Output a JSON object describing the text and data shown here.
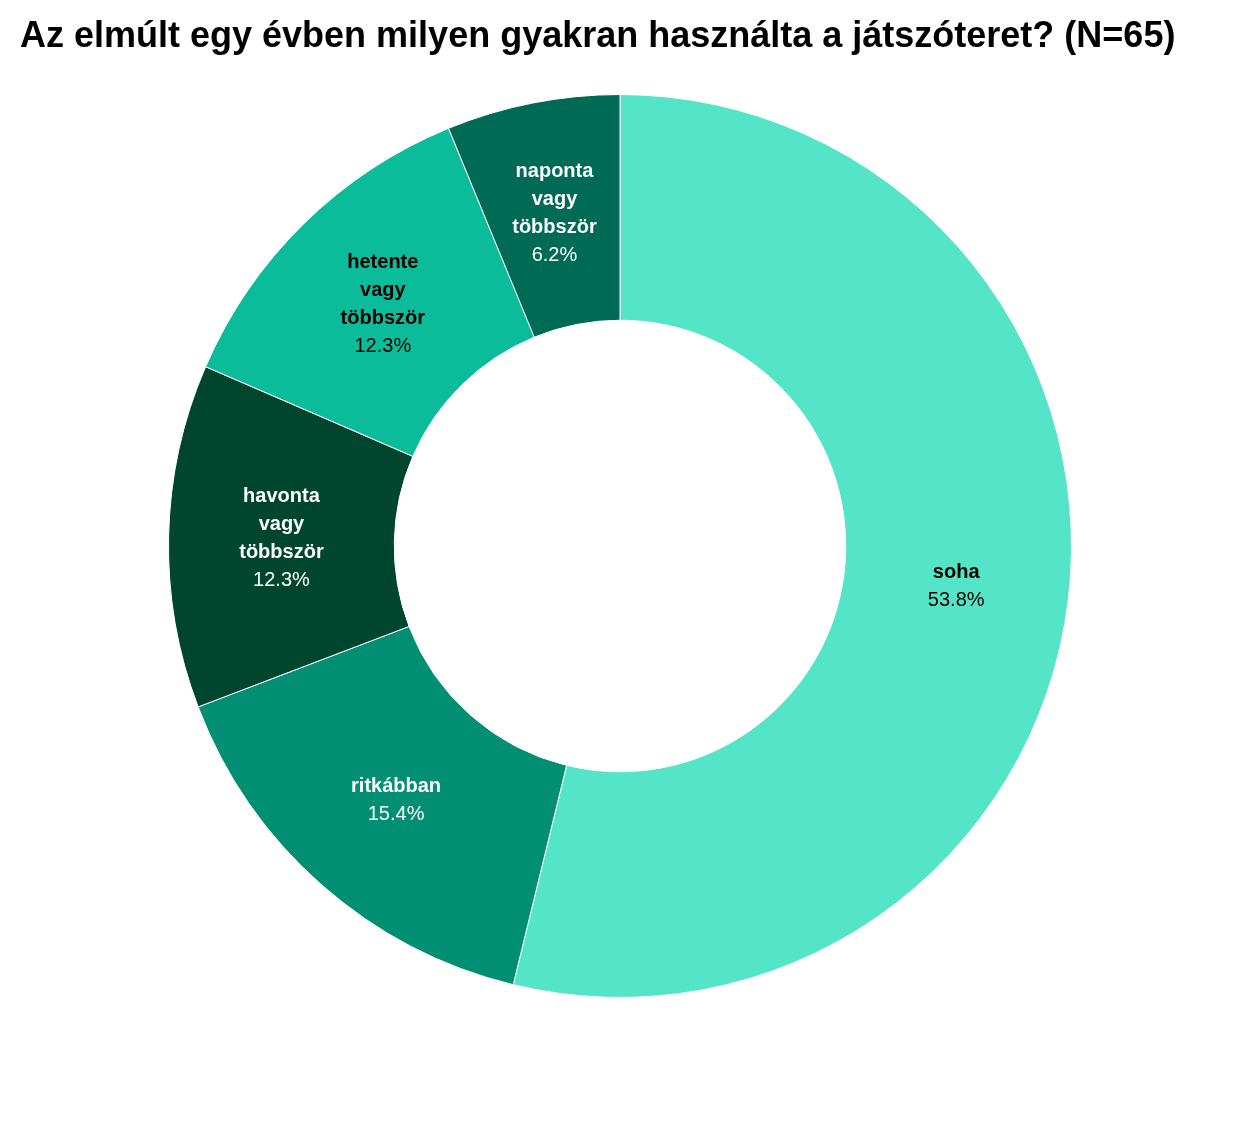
{
  "chart_data": {
    "type": "donut",
    "title": "Az elmúlt egy évben milyen gyakran használta a játszóteret? (N=65)",
    "categories": [
      "soha",
      "ritkábban",
      "havonta vagy többször",
      "hetente vagy többször",
      "naponta vagy többször"
    ],
    "values": [
      53.8,
      15.4,
      12.3,
      12.3,
      6.2
    ],
    "colors": [
      "#54e5c8",
      "#008f73",
      "#00462f",
      "#0bbc9b",
      "#006b55"
    ],
    "value_labels": [
      "53.8%",
      "15.4%",
      "12.3%",
      "12.3%",
      "6.2%"
    ],
    "legend": false
  }
}
